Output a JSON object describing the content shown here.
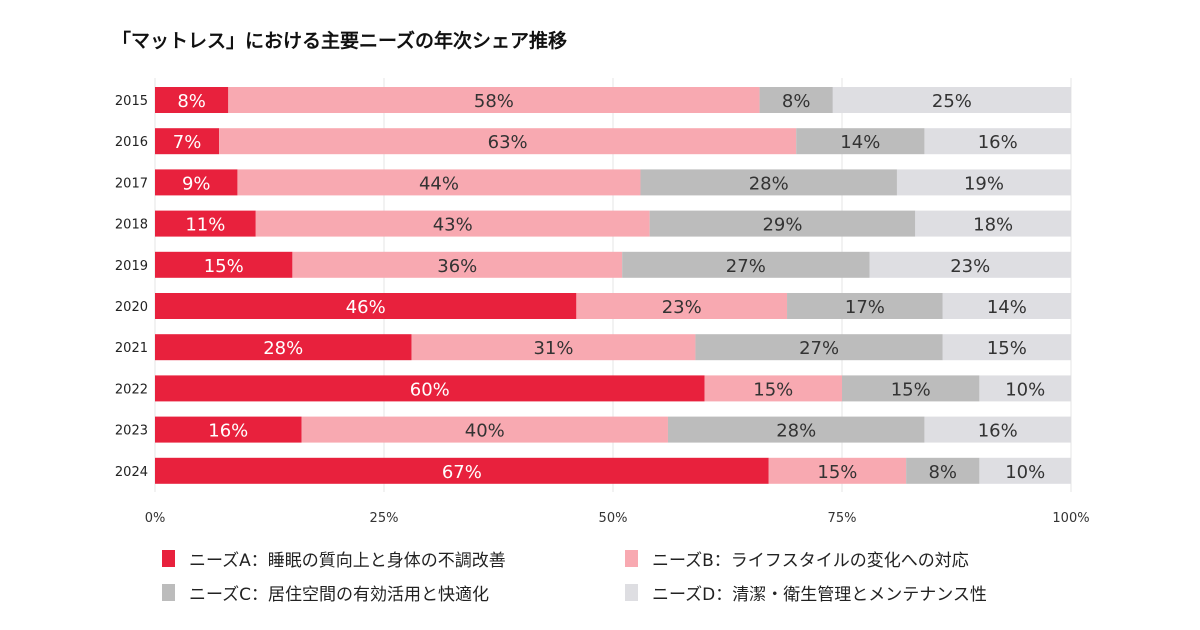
{
  "chart_data": {
    "type": "bar",
    "orientation": "horizontal",
    "stacked": true,
    "title": "「マットレス」における主要ニーズの年次シェア推移",
    "categories": [
      "2015",
      "2016",
      "2017",
      "2018",
      "2019",
      "2020",
      "2021",
      "2022",
      "2023",
      "2024"
    ],
    "series": [
      {
        "name": "ニーズA：睡眠の質向上と身体の不調改善",
        "color": "#e8213d",
        "values": [
          8,
          7,
          9,
          11,
          15,
          46,
          28,
          60,
          16,
          67
        ]
      },
      {
        "name": "ニーズB：ライフスタイルの変化への対応",
        "color": "#f8a9b1",
        "values": [
          58,
          63,
          44,
          43,
          36,
          23,
          31,
          15,
          40,
          15
        ]
      },
      {
        "name": "ニーズC：居住空間の有効活用と快適化",
        "color": "#bcbcbc",
        "values": [
          8,
          14,
          28,
          29,
          27,
          17,
          27,
          15,
          28,
          8
        ]
      },
      {
        "name": "ニーズD：清潔・衛生管理とメンテナンス性",
        "color": "#dedee2",
        "values": [
          25,
          16,
          19,
          18,
          23,
          14,
          15,
          10,
          16,
          10
        ]
      }
    ],
    "xlim": [
      0,
      100
    ],
    "xticks": [
      "0%",
      "25%",
      "50%",
      "75%",
      "100%"
    ],
    "grid": true,
    "legend_position": "bottom"
  }
}
